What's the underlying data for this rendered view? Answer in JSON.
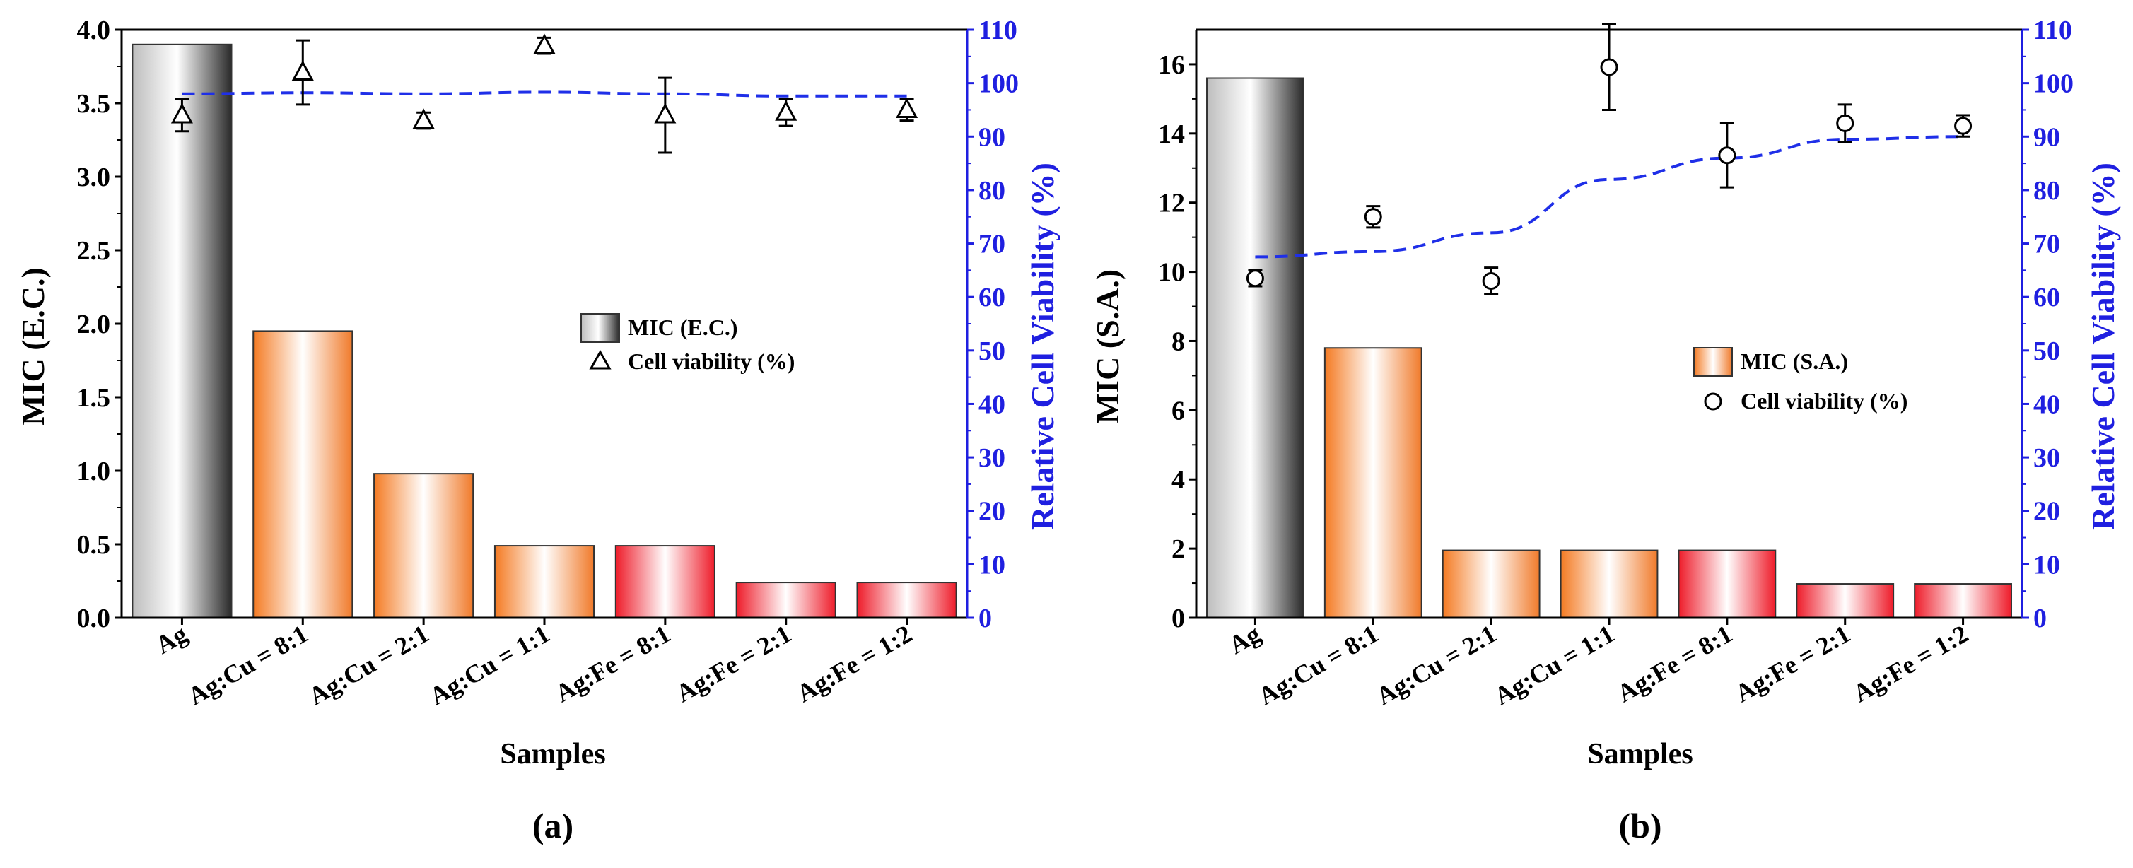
{
  "chart_data": [
    {
      "type": "bar",
      "panel_label": "(a)",
      "categories": [
        "Ag",
        "Ag:Cu = 8:1",
        "Ag:Cu = 2:1",
        "Ag:Cu = 1:1",
        "Ag:Fe = 8:1",
        "Ag:Fe = 2:1",
        "Ag:Fe = 1:2"
      ],
      "bar_groups": [
        "gray",
        "orange",
        "orange",
        "orange",
        "red",
        "red",
        "red"
      ],
      "values": [
        3.9,
        1.95,
        0.98,
        0.49,
        0.49,
        0.24,
        0.24
      ],
      "ylabel": "MIC (E.C.)",
      "ylim": [
        0,
        4.0
      ],
      "yticks": [
        "0.0",
        "0.5",
        "1.0",
        "1.5",
        "2.0",
        "2.5",
        "3.0",
        "3.5",
        "4.0"
      ],
      "y2label": "Relative Cell Viability (%)",
      "y2lim": [
        0,
        110
      ],
      "y2ticks": [
        "0",
        "10",
        "20",
        "30",
        "40",
        "50",
        "60",
        "70",
        "80",
        "90",
        "100",
        "110"
      ],
      "xlabel": "Samples",
      "viability": {
        "name": "Cell viability (%)",
        "marker": "triangle",
        "values": [
          94,
          102,
          93,
          107,
          94,
          94.5,
          95
        ],
        "errors": [
          3,
          6,
          1.5,
          1.5,
          7,
          2.5,
          2
        ]
      },
      "trend": [
        98,
        98.2,
        98,
        98.3,
        98,
        97.6,
        97.6
      ],
      "legend": {
        "bar": "MIC (E.C.)",
        "marker": "Cell viability (%)",
        "position": "center-right"
      },
      "colors": {
        "axis_right": "#1f1fe0",
        "trend": "#1f2fe8"
      }
    },
    {
      "type": "bar",
      "panel_label": "(b)",
      "categories": [
        "Ag",
        "Ag:Cu = 8:1",
        "Ag:Cu = 2:1",
        "Ag:Cu = 1:1",
        "Ag:Fe = 8:1",
        "Ag:Fe = 2:1",
        "Ag:Fe = 1:2"
      ],
      "bar_groups": [
        "gray",
        "orange",
        "orange",
        "orange",
        "red",
        "red",
        "red"
      ],
      "values": [
        15.6,
        7.8,
        1.95,
        1.95,
        1.95,
        0.98,
        0.98
      ],
      "ylabel": "MIC (S.A.)",
      "ylim": [
        0,
        17
      ],
      "yticks": [
        "0",
        "2",
        "4",
        "6",
        "8",
        "10",
        "12",
        "14",
        "16"
      ],
      "y2label": "Relative Cell Viability (%)",
      "y2lim": [
        0,
        110
      ],
      "y2ticks": [
        "0",
        "10",
        "20",
        "30",
        "40",
        "50",
        "60",
        "70",
        "80",
        "90",
        "100",
        "110"
      ],
      "xlabel": "Samples",
      "viability": {
        "name": "Cell viability (%)",
        "marker": "circle",
        "values": [
          63.5,
          75,
          63,
          103,
          86.5,
          92.5,
          92
        ],
        "errors": [
          1.5,
          2,
          2.5,
          8,
          6,
          3.5,
          2
        ]
      },
      "trend": [
        67.5,
        68.5,
        72,
        82,
        86,
        89.5,
        90
      ],
      "legend": {
        "bar": "MIC (S.A.)",
        "marker": "Cell viability (%)",
        "position": "center-right"
      },
      "colors": {
        "axis_right": "#1f1fe0",
        "trend": "#1f2fe8"
      }
    }
  ]
}
